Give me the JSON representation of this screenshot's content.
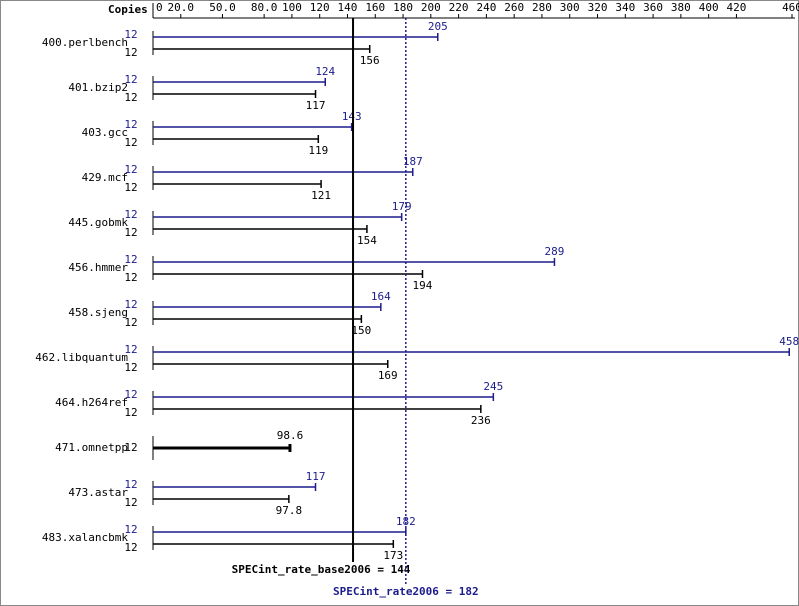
{
  "chart_data": {
    "type": "bar",
    "x_axis_label": "Copies",
    "xlim": [
      0,
      460
    ],
    "xticks": [
      0,
      {
        "value": 20,
        "label": "20.0"
      },
      {
        "value": 50,
        "label": "50.0"
      },
      {
        "value": 80,
        "label": "80.0"
      },
      100,
      120,
      140,
      160,
      180,
      200,
      220,
      240,
      260,
      280,
      300,
      320,
      340,
      360,
      380,
      400,
      420,
      460
    ],
    "categories": [
      "400.perlbench",
      "401.bzip2",
      "403.gcc",
      "429.mcf",
      "445.gobmk",
      "456.hmmer",
      "458.sjeng",
      "462.libquantum",
      "464.h264ref",
      "471.omnetpp",
      "473.astar",
      "483.xalancbmk"
    ],
    "series": [
      {
        "color": "#000000",
        "copies": [
          12,
          12,
          12,
          12,
          12,
          12,
          12,
          12,
          12,
          12,
          12,
          12
        ],
        "values": [
          156,
          117,
          119,
          121,
          154,
          194,
          150,
          169,
          236,
          98.6,
          97.8,
          173
        ]
      },
      {
        "color": "#1c1c8c",
        "copies": [
          12,
          12,
          12,
          12,
          12,
          12,
          12,
          12,
          12,
          null,
          12,
          12
        ],
        "values": [
          205,
          124,
          143,
          187,
          179,
          289,
          164,
          458,
          245,
          null,
          117,
          182
        ]
      }
    ],
    "reference_lines": [
      {
        "label": "SPECint_rate_base2006 = 144",
        "value": 144,
        "color": "#000000",
        "style": "solid"
      },
      {
        "label": "SPECint_rate2006 = 182",
        "value": 182,
        "color": "#1c1c8c",
        "style": "dotted"
      }
    ]
  }
}
